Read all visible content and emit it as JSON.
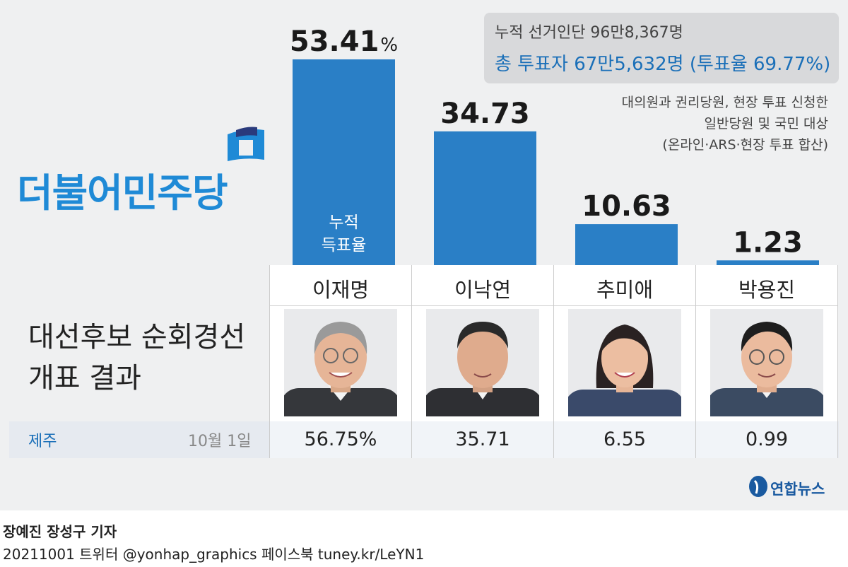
{
  "title_lines": [
    "대선후보 순회경선",
    "개표 결과"
  ],
  "party_logo_text": "더불어민주당",
  "info": {
    "line1": "누적 선거인단 96만8,367명",
    "line2": "총 투표자 67만5,632명 (투표율 69.77%)"
  },
  "note_lines": [
    "대의원과 권리당원, 현장 투표 신청한",
    "일반당원 및 국민 대상",
    "(온라인·ARS·현장 투표 합산)"
  ],
  "bar_inner_label": [
    "누적",
    "득표율"
  ],
  "region": {
    "name": "제주",
    "date": "10월 1일"
  },
  "colors": {
    "bar": "#2a7fc6",
    "accent_text": "#1a6fb8",
    "logo": "#1f8ad6",
    "background": "#eff0f1"
  },
  "icons": {
    "party_flag": "flag-icon",
    "yonhap_logo": "yonhap-logo-icon"
  },
  "chart_data": {
    "type": "bar",
    "title": "대선후보 순회경선 개표 결과",
    "categories": [
      "이재명",
      "이낙연",
      "추미애",
      "박용진"
    ],
    "series": [
      {
        "name": "누적 득표율",
        "values": [
          53.41,
          34.73,
          10.63,
          1.23
        ],
        "labels": [
          "53.41",
          "34.73",
          "10.63",
          "1.23"
        ],
        "first_label_unit": "%"
      },
      {
        "name": "제주",
        "values": [
          56.75,
          35.71,
          6.55,
          0.99
        ],
        "labels": [
          "56.75%",
          "35.71",
          "6.55",
          "0.99"
        ]
      }
    ],
    "ylim": [
      0,
      55
    ],
    "grid": false
  },
  "footer": {
    "logo_text": "연합뉴스",
    "reporters": "장예진 장성구 기자",
    "info": "20211001  트위터 @yonhap_graphics  페이스북 tuney.kr/LeYN1"
  }
}
